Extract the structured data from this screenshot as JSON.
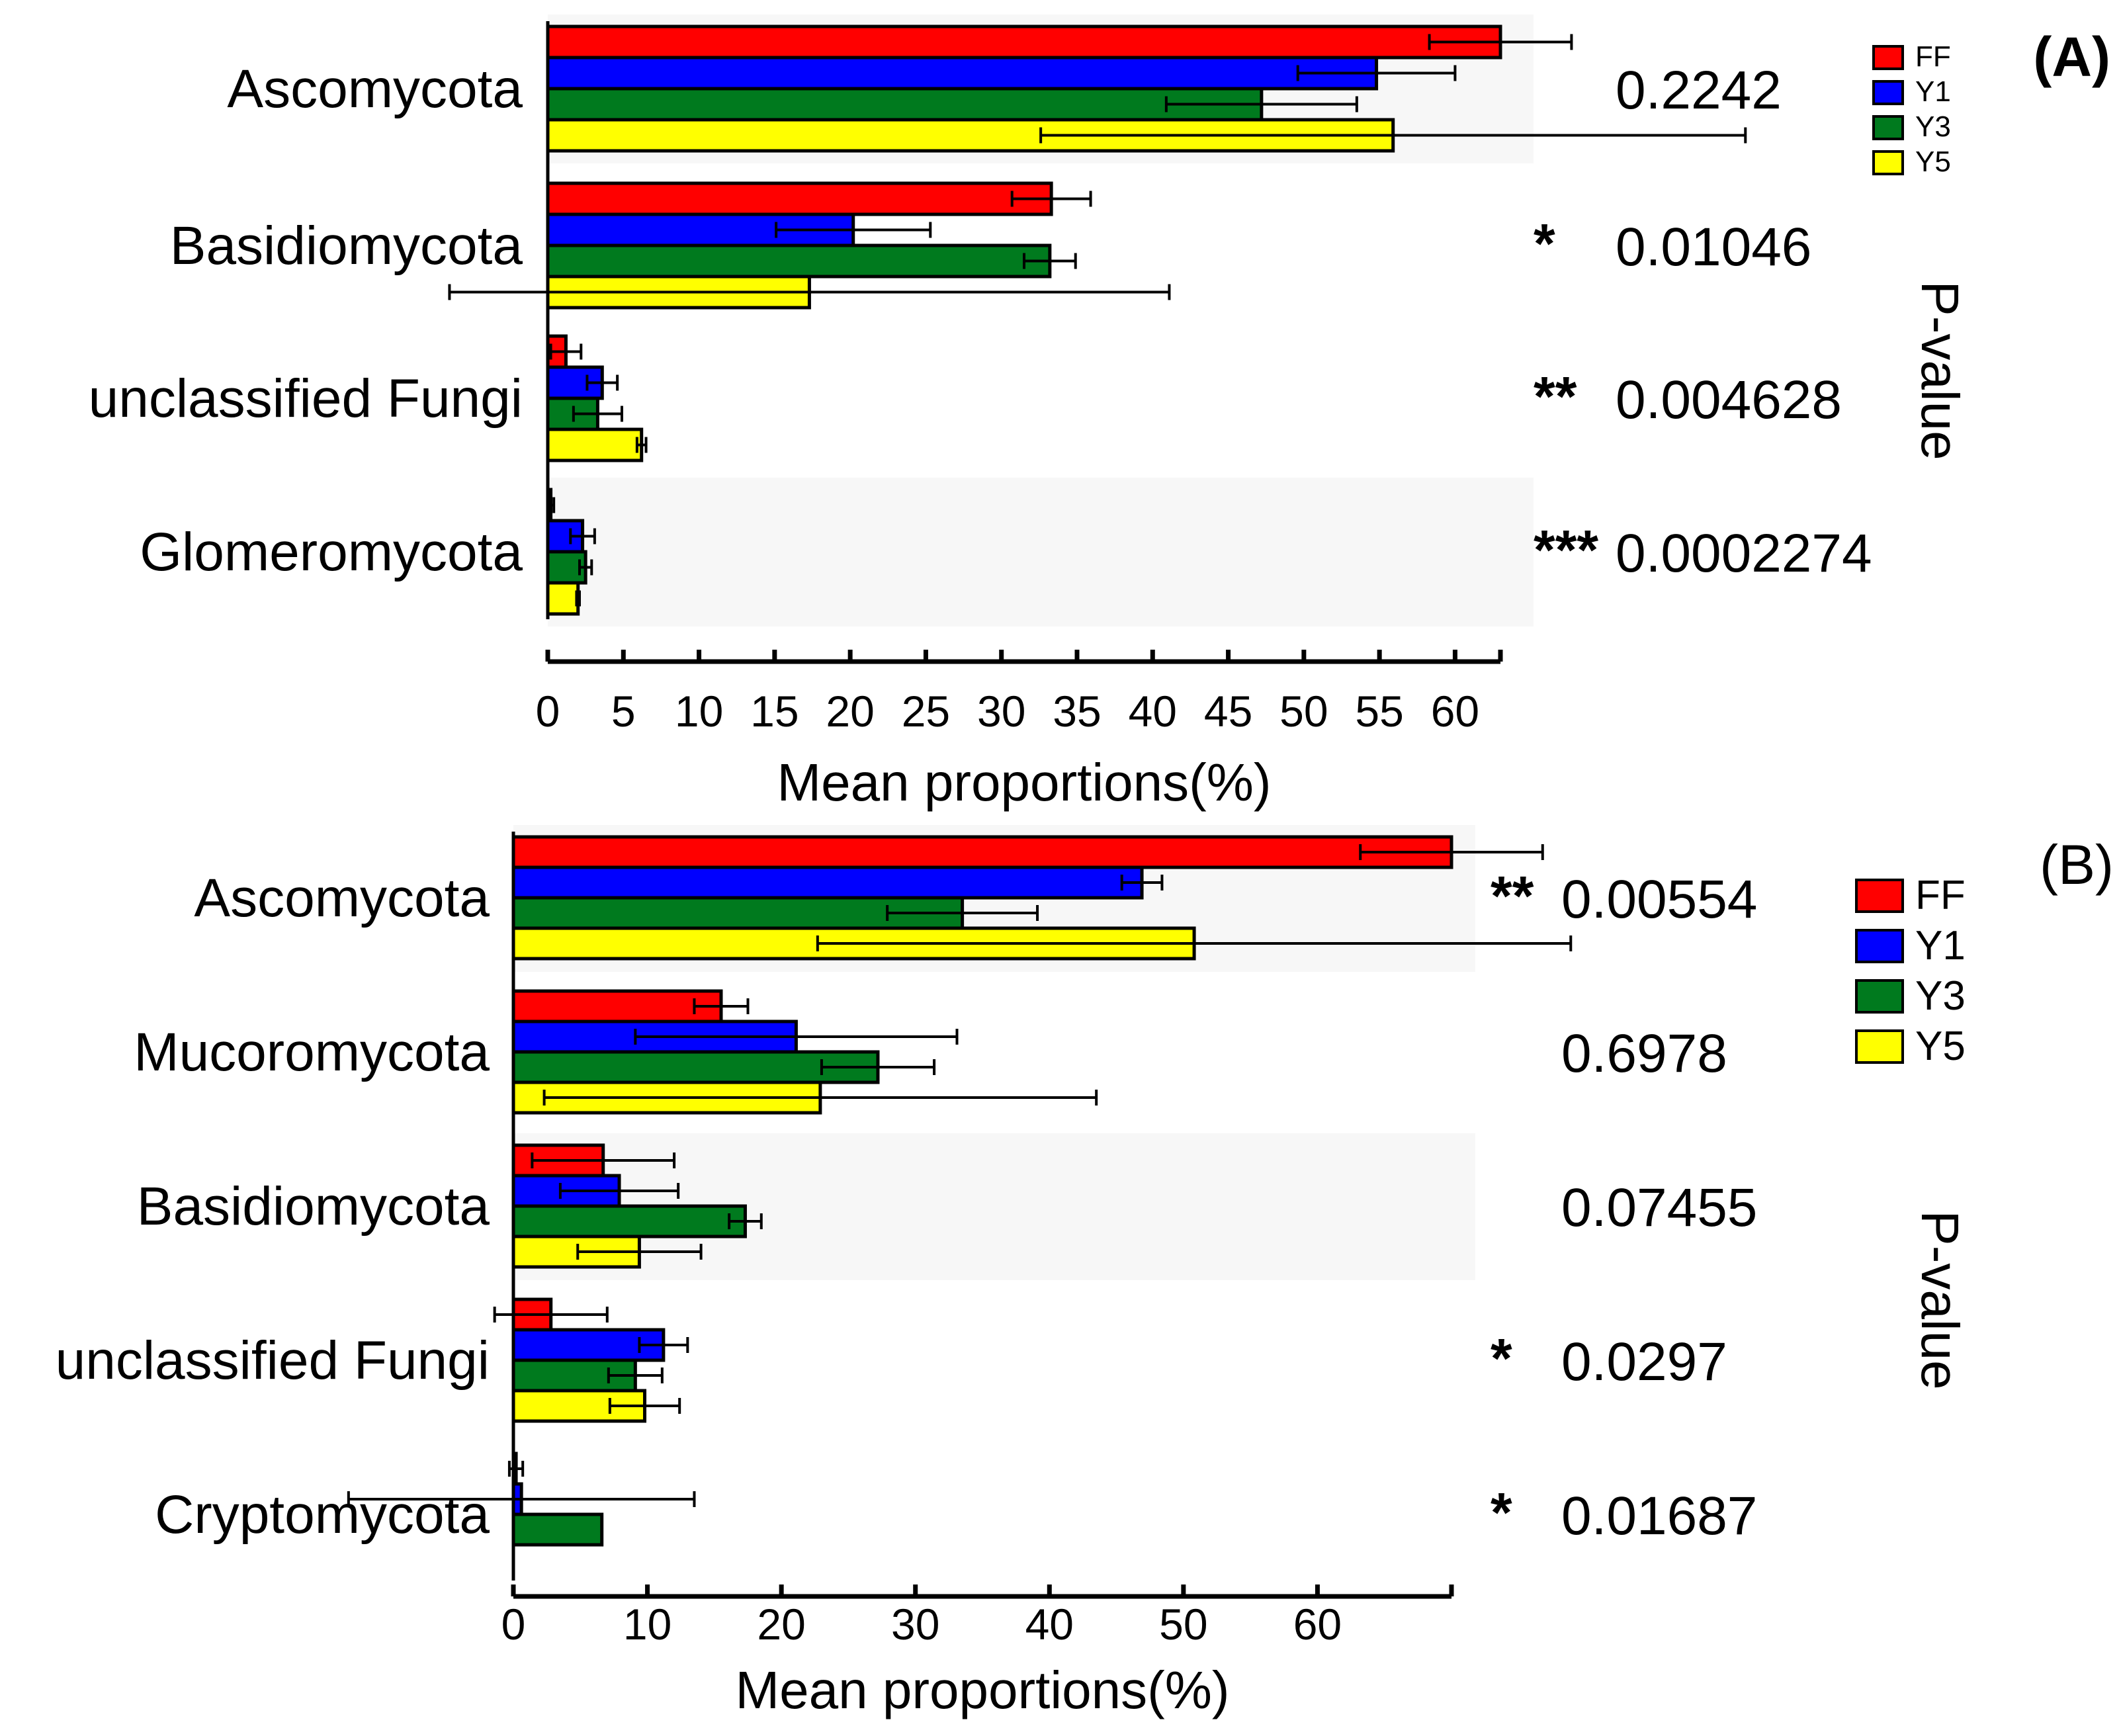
{
  "colors": {
    "FF": "#ff0000",
    "Y1": "#0000ff",
    "Y3": "#007a1e",
    "Y5": "#ffff00",
    "band": "#f7f7f7"
  },
  "chart_data": [
    {
      "type": "bar",
      "orientation": "horizontal",
      "panel_label": "(A)",
      "xlabel": "Mean proportions(%)",
      "ylabel": "P-value",
      "xlim": [
        0,
        63
      ],
      "xticks": [
        "0",
        "5",
        "10",
        "15",
        "20",
        "25",
        "30",
        "35",
        "40",
        "45",
        "50",
        "55",
        "60"
      ],
      "xtick_values": [
        0,
        5,
        10,
        15,
        20,
        25,
        30,
        35,
        40,
        45,
        50,
        55,
        60
      ],
      "legend": [
        "FF",
        "Y1",
        "Y3",
        "Y5"
      ],
      "legend_position": "top-right",
      "categories": [
        "Ascomycota",
        "Basidiomycota",
        "unclassified Fungi",
        "Glomeromycota"
      ],
      "p_values": [
        "0.2242",
        "0.01046",
        "0.004628",
        "0.0002274"
      ],
      "significance": [
        "",
        "*",
        "**",
        "***"
      ],
      "shaded": [
        true,
        false,
        false,
        true
      ],
      "series": [
        {
          "name": "FF",
          "values": [
            63,
            33.3,
            1.2,
            0.2
          ],
          "errors": [
            4.7,
            2.6,
            1.0,
            0.2
          ]
        },
        {
          "name": "Y1",
          "values": [
            54.8,
            20.2,
            3.6,
            2.3
          ],
          "errors": [
            5.2,
            5.1,
            1.0,
            0.8
          ]
        },
        {
          "name": "Y3",
          "values": [
            47.2,
            33.2,
            3.3,
            2.5
          ],
          "errors": [
            6.3,
            1.7,
            1.6,
            0.4
          ]
        },
        {
          "name": "Y5",
          "values": [
            55.9,
            17.3,
            6.2,
            2.0
          ],
          "errors": [
            23.3,
            23.8,
            0.3,
            0.1
          ]
        }
      ]
    },
    {
      "type": "bar",
      "orientation": "horizontal",
      "panel_label": "(B)",
      "xlabel": "Mean proportions(%)",
      "ylabel": "P-value",
      "xlim": [
        0,
        70
      ],
      "xticks": [
        "0",
        "10",
        "20",
        "30",
        "40",
        "50",
        "60"
      ],
      "xtick_values": [
        0,
        10,
        20,
        30,
        40,
        50,
        60
      ],
      "legend": [
        "FF",
        "Y1",
        "Y3",
        "Y5"
      ],
      "legend_position": "top-right",
      "categories": [
        "Ascomycota",
        "Mucoromycota",
        "Basidiomycota",
        "unclassified Fungi",
        "Cryptomycota"
      ],
      "p_values": [
        "0.00554",
        "0.6978",
        "0.07455",
        "0.0297",
        "0.01687"
      ],
      "significance": [
        "**",
        "",
        "",
        "*",
        "*"
      ],
      "shaded": [
        true,
        false,
        true,
        false,
        false
      ],
      "series": [
        {
          "name": "FF",
          "values": [
            70,
            15.5,
            6.7,
            2.8,
            0.2
          ],
          "errors": [
            6.8,
            2.0,
            5.3,
            4.2,
            0.5
          ]
        },
        {
          "name": "Y1",
          "values": [
            46.9,
            21.1,
            7.9,
            11.2,
            0.6
          ],
          "errors": [
            1.5,
            12.0,
            4.4,
            1.8,
            12.9
          ]
        },
        {
          "name": "Y3",
          "values": [
            33.5,
            27.2,
            17.3,
            9.1,
            6.6
          ],
          "errors": [
            5.6,
            4.2,
            1.2,
            2.0,
            0
          ]
        },
        {
          "name": "Y5",
          "values": [
            50.8,
            22.9,
            9.4,
            9.8,
            0
          ],
          "errors": [
            28.1,
            20.6,
            4.6,
            2.6,
            0
          ]
        }
      ]
    }
  ]
}
